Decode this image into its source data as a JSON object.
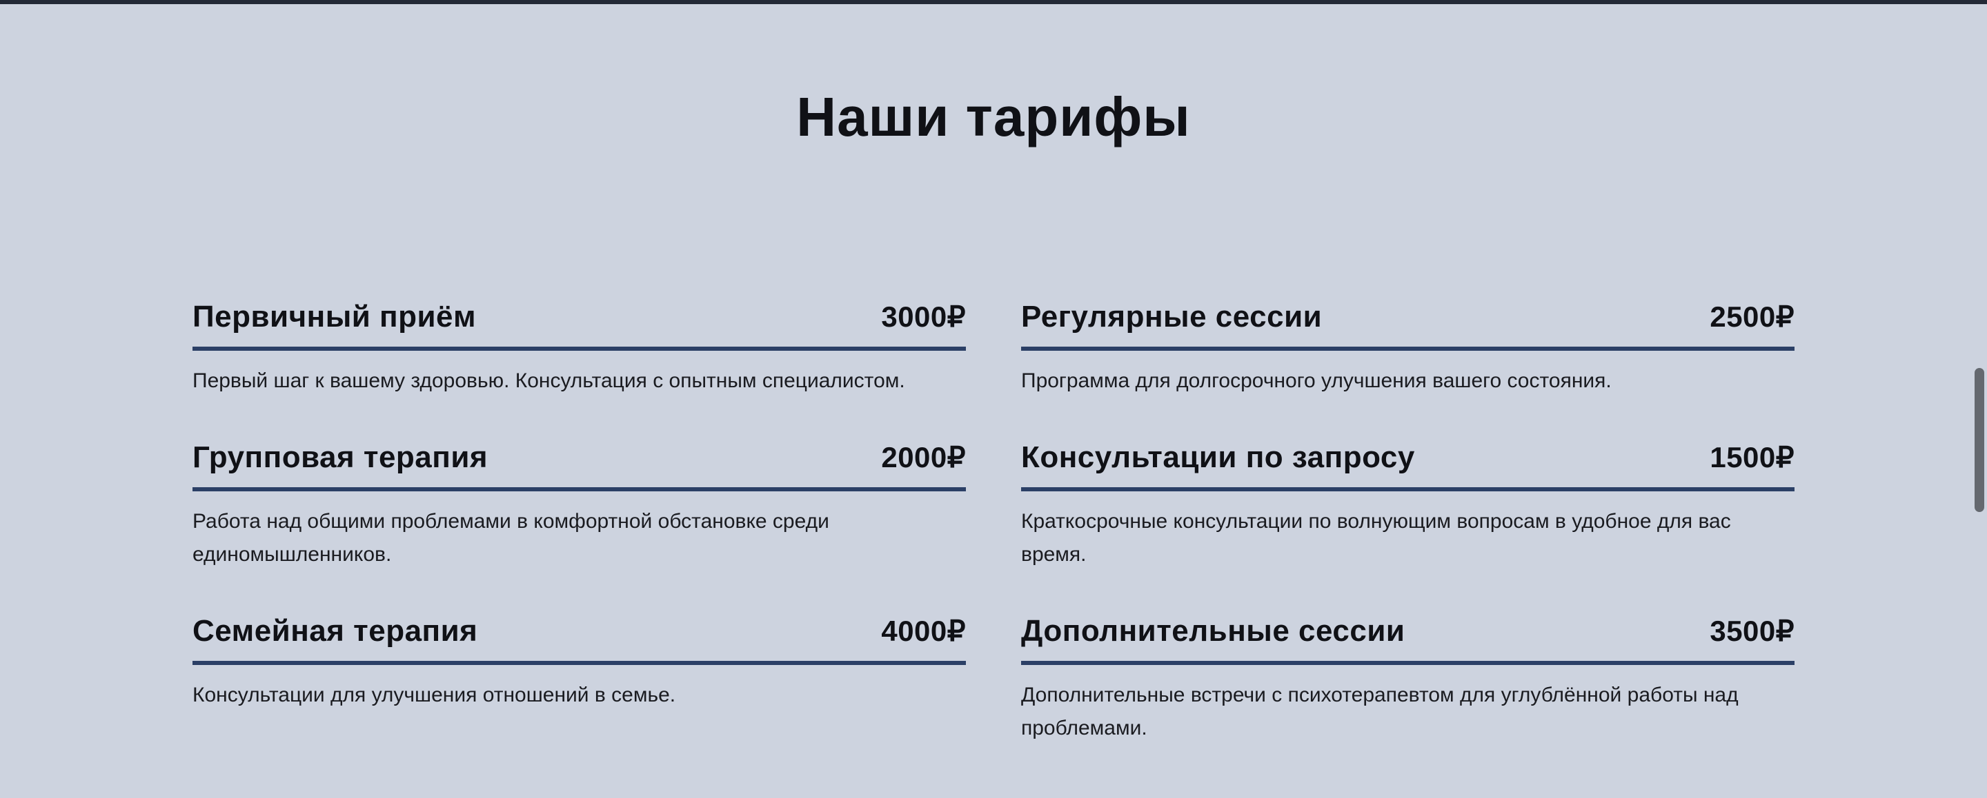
{
  "header": {
    "title": "Наши тарифы"
  },
  "pricing": {
    "columns": [
      {
        "items": [
          {
            "name": "Первичный приём",
            "price": "3000₽",
            "description": "Первый шаг к вашему здоровью. Консультация с опытным специалистом."
          },
          {
            "name": "Групповая терапия",
            "price": "2000₽",
            "description": "Работа над общими проблемами в комфортной обстановке среди единомышленников."
          },
          {
            "name": "Семейная терапия",
            "price": "4000₽",
            "description": "Консультации для улучшения отношений в семье."
          }
        ]
      },
      {
        "items": [
          {
            "name": "Регулярные сессии",
            "price": "2500₽",
            "description": "Программа для долгосрочного улучшения вашего состояния."
          },
          {
            "name": "Консультации по запросу",
            "price": "1500₽",
            "description": "Краткосрочные консультации по волнующим вопросам в удобное для вас время."
          },
          {
            "name": "Дополнительные сессии",
            "price": "3500₽",
            "description": "Дополнительные встречи с психотерапевтом для углублённой работы над проблемами."
          }
        ]
      }
    ]
  },
  "colors": {
    "background": "#cdd3df",
    "top_bar": "#232936",
    "divider": "#2b3f66",
    "title_text": "#101116",
    "description_text": "#1a1b20",
    "scrollbar_thumb": "#64686f"
  }
}
